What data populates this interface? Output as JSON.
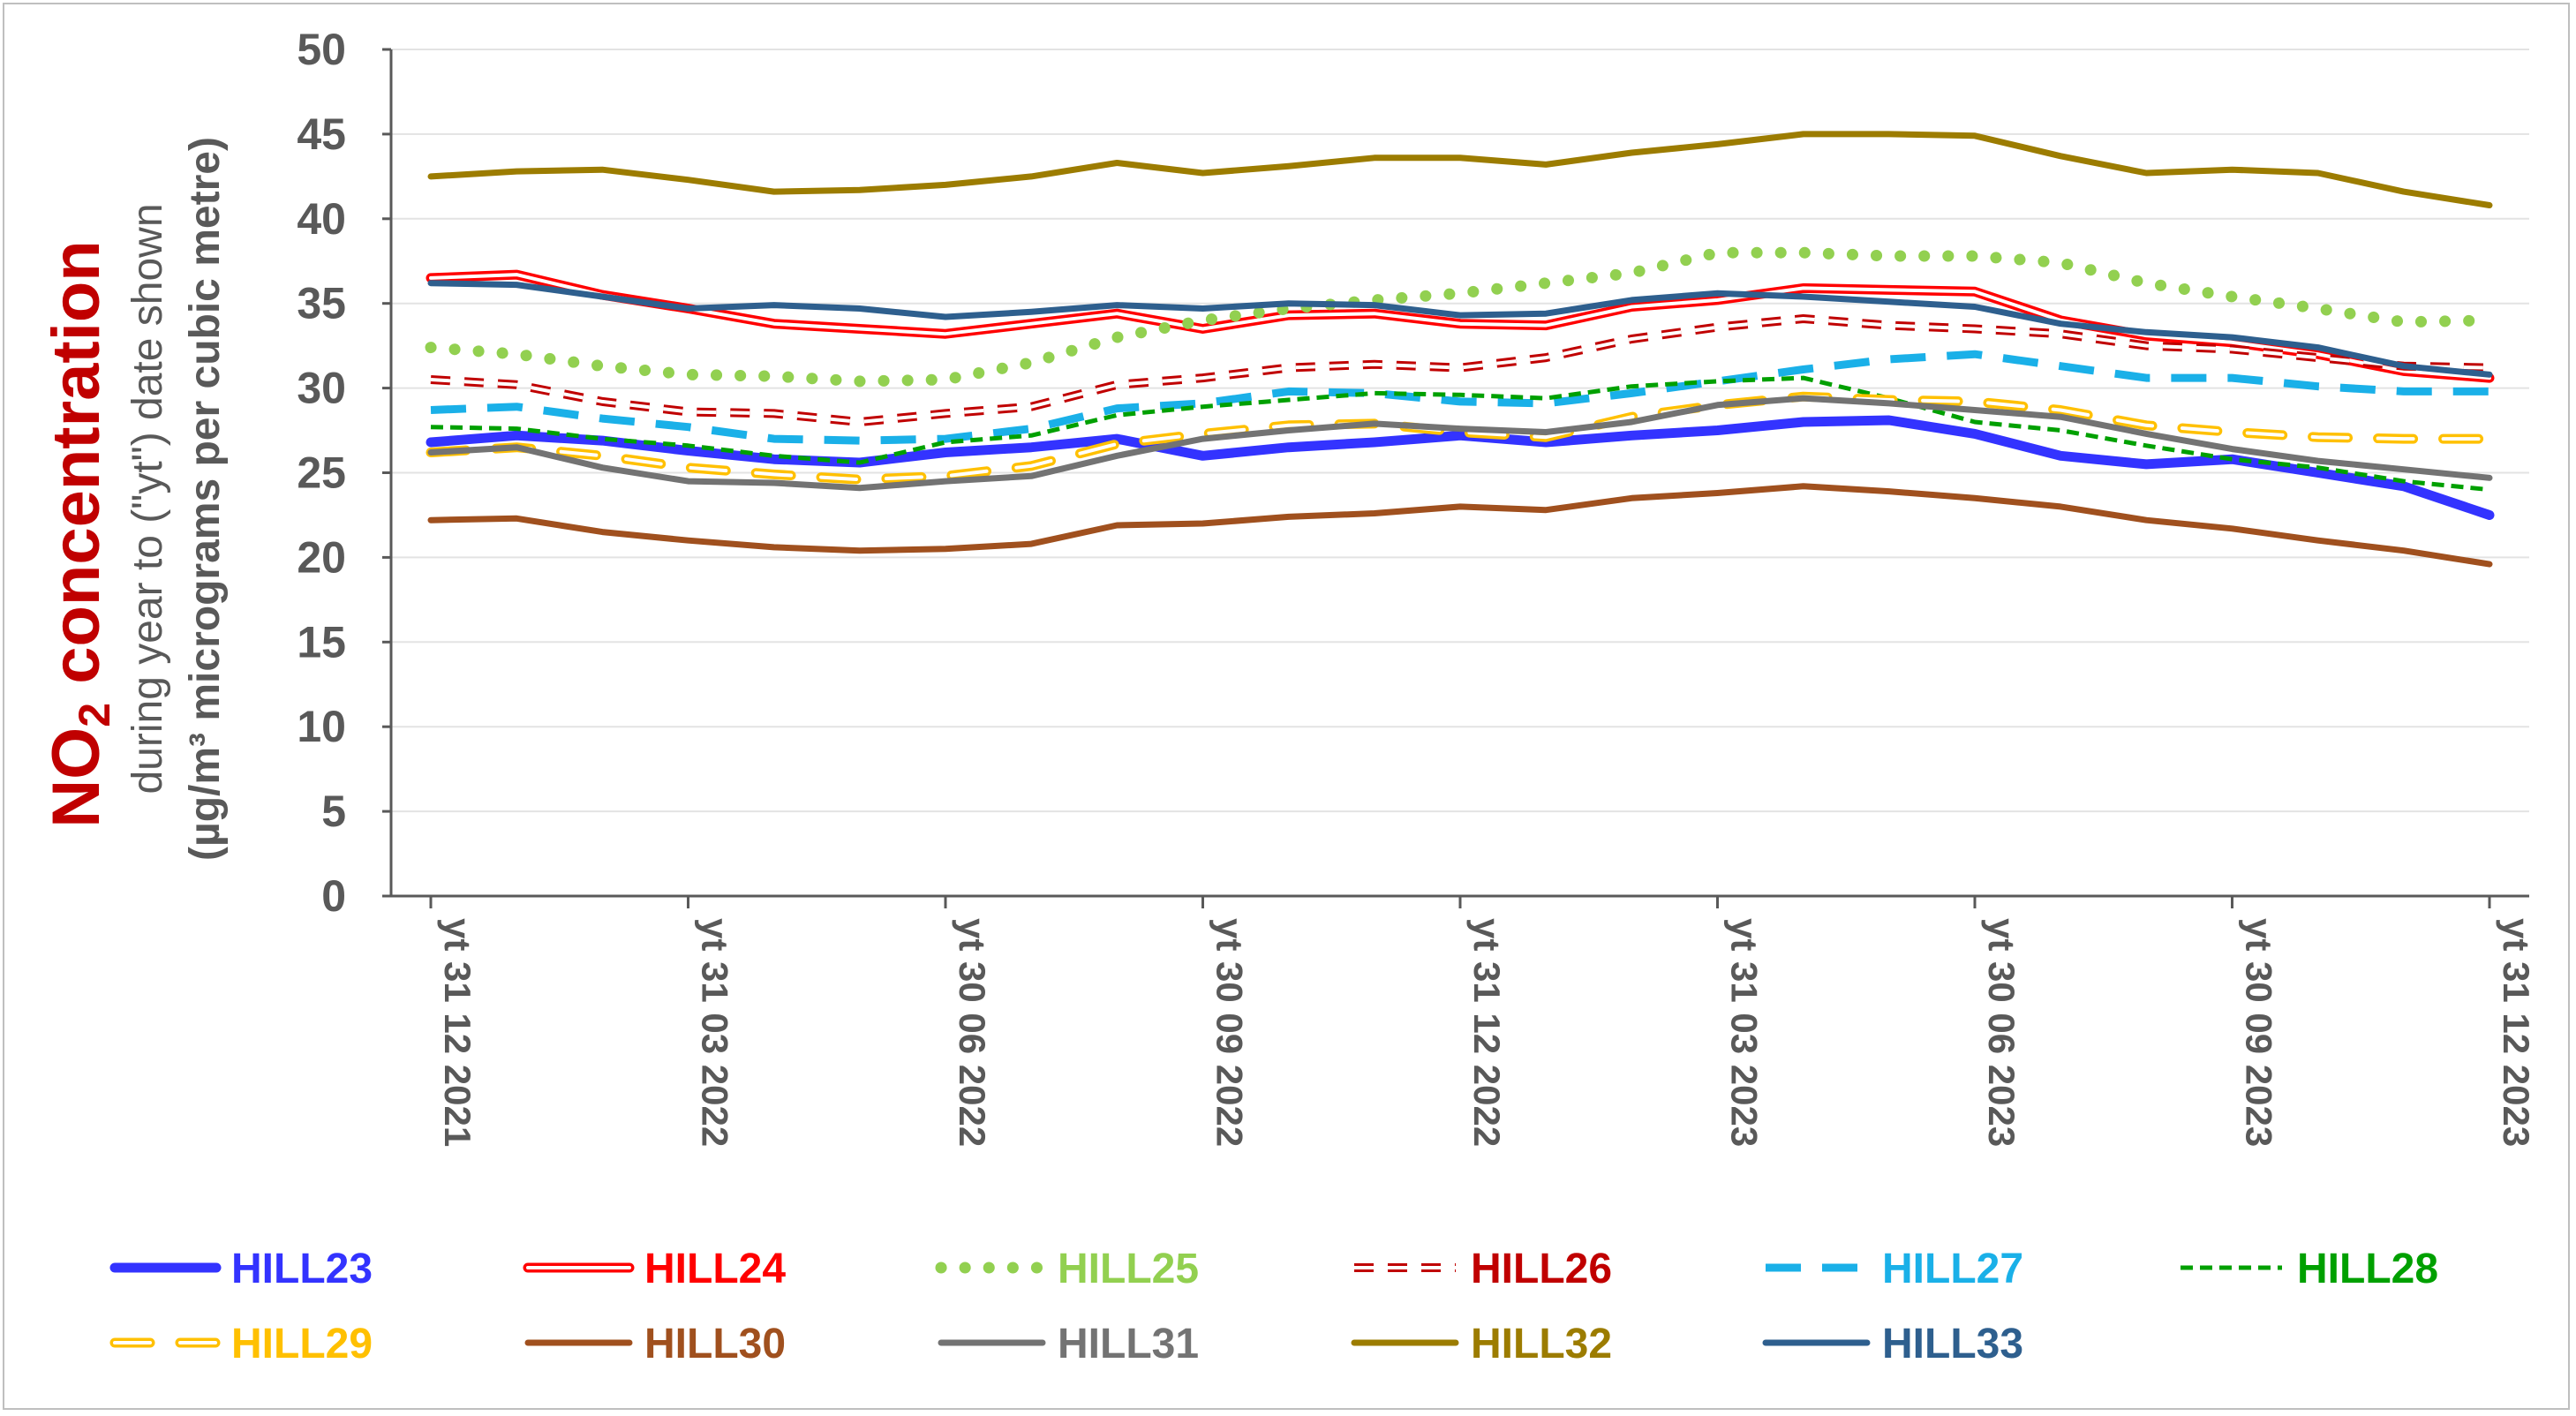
{
  "chart_data": {
    "type": "line",
    "ylabel_main": "NO",
    "ylabel_main_sub": "2",
    "ylabel_main_rest": " concentration",
    "ylabel_line2": "during year to (\"yt\") date shown",
    "ylabel_line3": "(µg/m³ micrograms per cubic metre)",
    "ylim": [
      0,
      50
    ],
    "yticks": [
      "0",
      "5",
      "10",
      "15",
      "20",
      "25",
      "30",
      "35",
      "40",
      "45",
      "50"
    ],
    "x_tick_labels": [
      "yt 31 12 2021",
      "yt 31 03 2022",
      "yt 30 06 2022",
      "yt 30 09 2022",
      "yt 31 12 2022",
      "yt 31 03 2023",
      "yt 30 06 2023",
      "yt 30 09 2023",
      "yt 31 12 2023"
    ],
    "n_points": 25,
    "grid": true,
    "legend_position": "bottom",
    "series": [
      {
        "name": "HILL23",
        "color": "#3333ff",
        "style": "solid-thick",
        "values": [
          26.8,
          27.2,
          26.9,
          26.3,
          25.8,
          25.6,
          26.2,
          26.5,
          27.0,
          26.0,
          26.5,
          26.8,
          27.2,
          26.8,
          27.2,
          27.5,
          28.0,
          28.1,
          27.3,
          26.0,
          25.5,
          25.8,
          25.0,
          24.2,
          22.5
        ]
      },
      {
        "name": "HILL24",
        "color": "#ff0000",
        "style": "double",
        "values": [
          36.5,
          36.7,
          35.5,
          34.7,
          33.8,
          33.5,
          33.2,
          33.8,
          34.4,
          33.5,
          34.3,
          34.4,
          33.8,
          33.7,
          34.8,
          35.2,
          35.9,
          35.8,
          35.7,
          34.0,
          33.1,
          32.7,
          32.0,
          31.0,
          30.6
        ]
      },
      {
        "name": "HILL25",
        "color": "#92d050",
        "style": "dotted",
        "values": [
          32.4,
          32.0,
          31.3,
          30.8,
          30.7,
          30.4,
          30.5,
          31.5,
          33.0,
          34.0,
          34.7,
          35.2,
          35.6,
          36.2,
          36.8,
          38.0,
          38.0,
          37.8,
          37.8,
          37.4,
          36.2,
          35.4,
          34.7,
          33.9,
          34.0
        ]
      },
      {
        "name": "HILL26",
        "color": "#c00000",
        "style": "double-dashed",
        "values": [
          30.5,
          30.2,
          29.2,
          28.6,
          28.5,
          28.0,
          28.5,
          28.9,
          30.2,
          30.6,
          31.2,
          31.4,
          31.2,
          31.8,
          32.9,
          33.6,
          34.1,
          33.7,
          33.5,
          33.2,
          32.5,
          32.3,
          31.8,
          31.3,
          31.2
        ]
      },
      {
        "name": "HILL27",
        "color": "#1ab0e8",
        "style": "dashed-long",
        "values": [
          28.7,
          28.9,
          28.2,
          27.7,
          27.0,
          26.9,
          27.0,
          27.6,
          28.8,
          29.1,
          29.8,
          29.7,
          29.2,
          29.1,
          29.7,
          30.4,
          31.1,
          31.7,
          32.0,
          31.3,
          30.6,
          30.6,
          30.1,
          29.8,
          29.8
        ]
      },
      {
        "name": "HILL28",
        "color": "#00a000",
        "style": "dashed-short",
        "values": [
          27.7,
          27.6,
          27.0,
          26.6,
          26.0,
          25.6,
          26.8,
          27.2,
          28.4,
          28.9,
          29.3,
          29.7,
          29.6,
          29.4,
          30.1,
          30.4,
          30.6,
          29.4,
          28.0,
          27.5,
          26.6,
          25.8,
          25.3,
          24.5,
          24.0
        ]
      },
      {
        "name": "HILL29",
        "color": "#ffc000",
        "style": "double-dashed-long",
        "values": [
          26.2,
          26.5,
          26.0,
          25.3,
          24.9,
          24.6,
          24.8,
          25.4,
          26.7,
          27.3,
          27.8,
          27.9,
          27.4,
          27.1,
          28.3,
          29.0,
          29.5,
          29.3,
          29.2,
          28.7,
          27.8,
          27.4,
          27.1,
          27.0,
          27.0
        ]
      },
      {
        "name": "HILL30",
        "color": "#a0501e",
        "style": "solid",
        "values": [
          22.2,
          22.3,
          21.5,
          21.0,
          20.6,
          20.4,
          20.5,
          20.8,
          21.9,
          22.0,
          22.4,
          22.6,
          23.0,
          22.8,
          23.5,
          23.8,
          24.2,
          23.9,
          23.5,
          23.0,
          22.2,
          21.7,
          21.0,
          20.4,
          19.6
        ]
      },
      {
        "name": "HILL31",
        "color": "#737373",
        "style": "solid",
        "values": [
          26.2,
          26.5,
          25.3,
          24.5,
          24.4,
          24.1,
          24.5,
          24.8,
          26.0,
          27.0,
          27.5,
          27.9,
          27.6,
          27.4,
          28.0,
          29.0,
          29.4,
          29.1,
          28.7,
          28.3,
          27.3,
          26.4,
          25.7,
          25.2,
          24.7
        ]
      },
      {
        "name": "HILL32",
        "color": "#9c7c00",
        "style": "solid",
        "values": [
          42.5,
          42.8,
          42.9,
          42.3,
          41.6,
          41.7,
          42.0,
          42.5,
          43.3,
          42.7,
          43.1,
          43.6,
          43.6,
          43.2,
          43.9,
          44.4,
          45.0,
          45.0,
          44.9,
          43.7,
          42.7,
          42.9,
          42.7,
          41.6,
          40.8
        ]
      },
      {
        "name": "HILL33",
        "color": "#2e5f8e",
        "style": "solid",
        "values": [
          36.2,
          36.1,
          35.4,
          34.7,
          34.9,
          34.7,
          34.2,
          34.5,
          34.9,
          34.7,
          35.0,
          34.9,
          34.3,
          34.4,
          35.2,
          35.6,
          35.4,
          35.1,
          34.8,
          33.8,
          33.3,
          33.0,
          32.4,
          31.3,
          30.8
        ]
      }
    ]
  }
}
